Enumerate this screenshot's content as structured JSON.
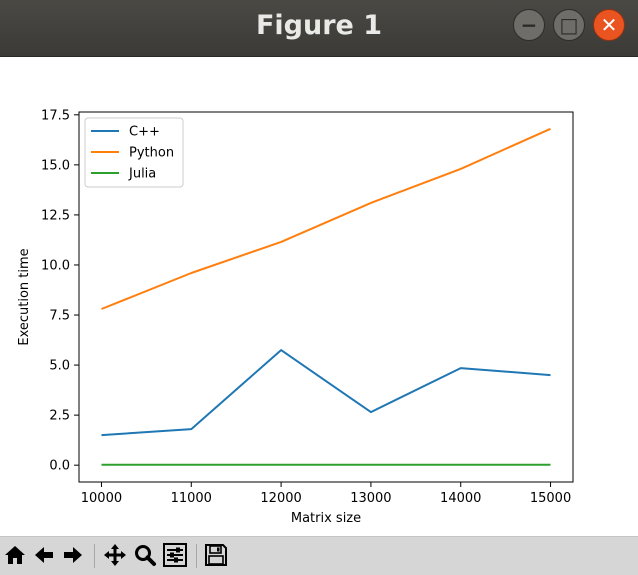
{
  "window": {
    "title": "Figure 1",
    "buttons": {
      "minimize": "−",
      "maximize": "□",
      "close": "✕"
    }
  },
  "toolbar": {
    "items": [
      "home-icon",
      "back-arrow-icon",
      "forward-arrow-icon",
      "pan-icon",
      "zoom-icon",
      "configure-subplots-icon",
      "save-icon"
    ]
  },
  "chart_data": {
    "type": "line",
    "title": "",
    "xlabel": "Matrix size",
    "ylabel": "Execution time",
    "xlim": [
      9750,
      15250
    ],
    "ylim": [
      -0.84,
      17.64
    ],
    "x_ticks": [
      10000,
      11000,
      12000,
      13000,
      14000,
      15000
    ],
    "y_ticks": [
      0.0,
      2.5,
      5.0,
      7.5,
      10.0,
      12.5,
      15.0,
      17.5
    ],
    "y_tick_labels": [
      "0.0",
      "2.5",
      "5.0",
      "7.5",
      "10.0",
      "12.5",
      "15.0",
      "17.5"
    ],
    "x": [
      10000,
      11000,
      12000,
      13000,
      14000,
      15000
    ],
    "series": [
      {
        "name": "C++",
        "color": "#1f77b4",
        "values": [
          1.5,
          1.8,
          5.75,
          2.65,
          4.85,
          4.5
        ]
      },
      {
        "name": "Python",
        "color": "#ff7f0e",
        "values": [
          7.8,
          9.6,
          11.15,
          13.1,
          14.8,
          16.8
        ]
      },
      {
        "name": "Julia",
        "color": "#2ca02c",
        "values": [
          0.02,
          0.02,
          0.02,
          0.02,
          0.02,
          0.02
        ]
      }
    ],
    "grid": false,
    "legend_position": "upper-left"
  }
}
